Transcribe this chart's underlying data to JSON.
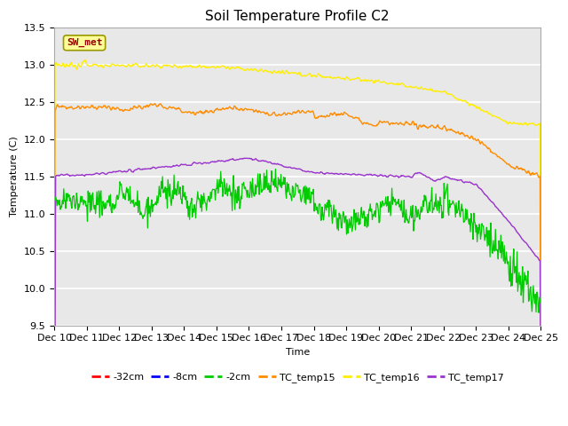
{
  "title": "Soil Temperature Profile C2",
  "xlabel": "Time",
  "ylabel": "Temperature (C)",
  "ylim": [
    9.5,
    13.5
  ],
  "x_tick_labels": [
    "Dec 10",
    "Dec 11",
    "Dec 12",
    "Dec 13",
    "Dec 14",
    "Dec 15",
    "Dec 16",
    "Dec 17",
    "Dec 18",
    "Dec 19",
    "Dec 20",
    "Dec 21",
    "Dec 22",
    "Dec 23",
    "Dec 24",
    "Dec 25"
  ],
  "yticks": [
    9.5,
    10.0,
    10.5,
    11.0,
    11.5,
    12.0,
    12.5,
    13.0,
    13.5
  ],
  "colors": {
    "neg32cm": "#ff0000",
    "neg8cm": "#0000ff",
    "neg2cm": "#00cc00",
    "TC_temp15": "#ff8c00",
    "TC_temp16": "#ffee00",
    "TC_temp17": "#9933cc"
  },
  "annotation_text": "SW_met",
  "annotation_bg": "#ffff99",
  "annotation_border": "#999900",
  "annotation_text_color": "#990000",
  "background_color": "#e8e8e8",
  "plot_bg": "#e8e8e8",
  "title_fontsize": 11,
  "axis_label_fontsize": 8,
  "tick_fontsize": 8,
  "n_days": 15,
  "n_points_per_day": 48
}
